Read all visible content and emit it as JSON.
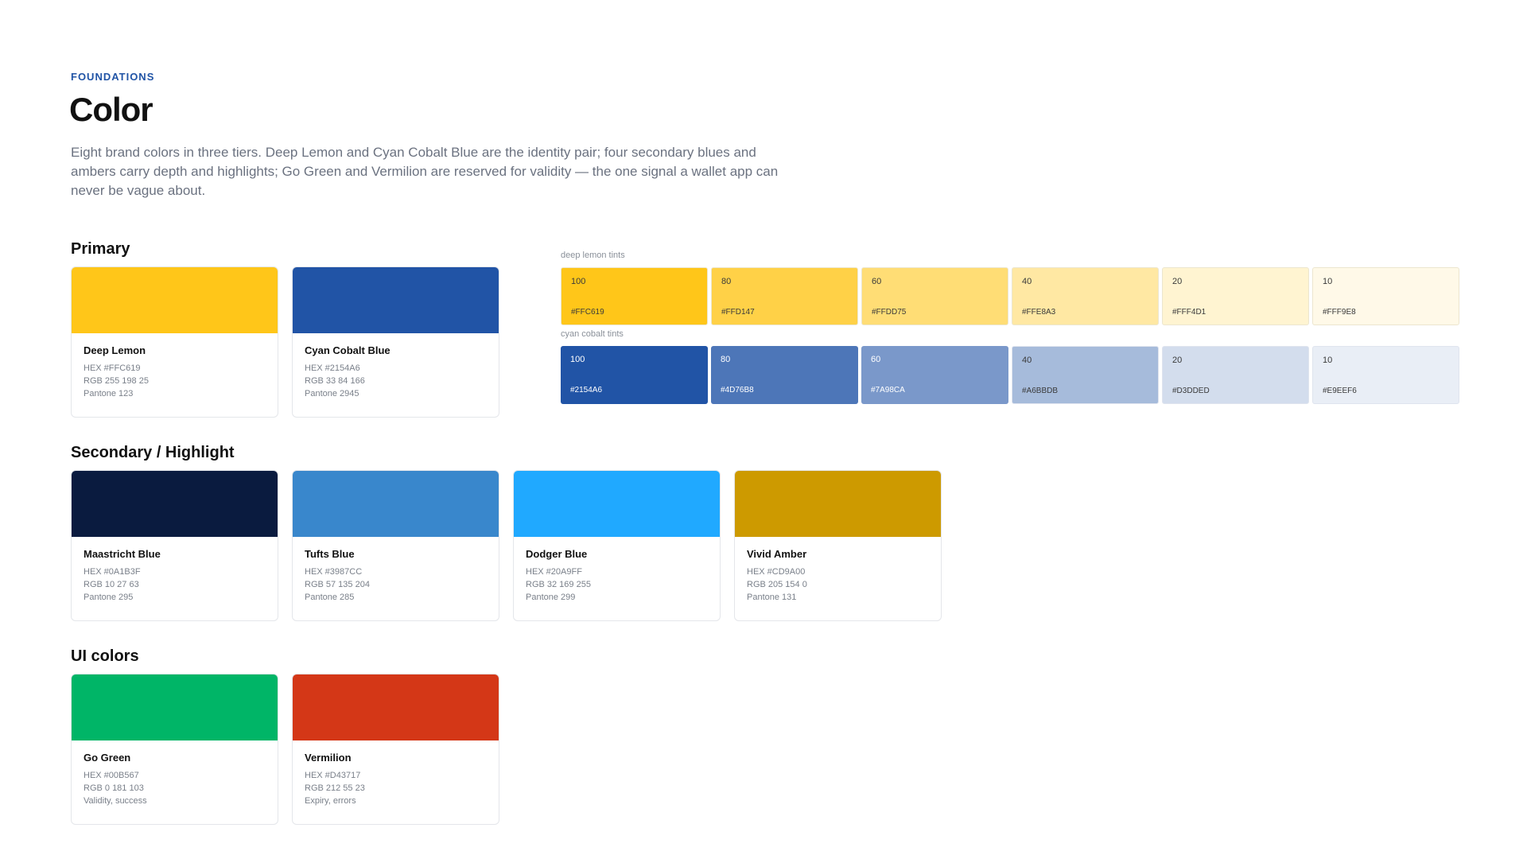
{
  "header": {
    "eyebrow": "FOUNDATIONS",
    "title": "Color",
    "intro": "Eight brand colors in three tiers. Deep Lemon and Cyan Cobalt Blue are the identity pair; four secondary blues and ambers carry depth and highlights; Go Green and Vermilion are reserved for validity — the one signal a wallet app can never be vague about."
  },
  "primary": {
    "title": "Primary",
    "cards": [
      {
        "name": "Deep Lemon",
        "hex": "HEX #FFC619",
        "rgb": "RGB 255 198 25",
        "note": "Pantone 123",
        "color": "#FFC619"
      },
      {
        "name": "Cyan Cobalt Blue",
        "hex": "HEX #2154A6",
        "rgb": "RGB 33 84 166",
        "note": "Pantone 2945",
        "color": "#2154A6"
      }
    ]
  },
  "tints": [
    {
      "label": "deep lemon  tints",
      "tiles": [
        {
          "level": "100",
          "hex": "#FFC619",
          "color": "#FFC619"
        },
        {
          "level": "80",
          "hex": "#FFD147",
          "color": "#FFD147"
        },
        {
          "level": "60",
          "hex": "#FFDD75",
          "color": "#FFDD75"
        },
        {
          "level": "40",
          "hex": "#FFE8A3",
          "color": "#FFE8A3"
        },
        {
          "level": "20",
          "hex": "#FFF4D1",
          "color": "#FFF4D1"
        },
        {
          "level": "10",
          "hex": "#FFF9E8",
          "color": "#FFF9E8"
        }
      ]
    },
    {
      "label": "cyan cobalt  tints",
      "tiles": [
        {
          "level": "100",
          "hex": "#2154A6",
          "color": "#2154A6"
        },
        {
          "level": "80",
          "hex": "#4D76B8",
          "color": "#4D76B8"
        },
        {
          "level": "60",
          "hex": "#7A98CA",
          "color": "#7A98CA"
        },
        {
          "level": "40",
          "hex": "#A6BBDB",
          "color": "#A6BBDB"
        },
        {
          "level": "20",
          "hex": "#D3DDED",
          "color": "#D3DDED"
        },
        {
          "level": "10",
          "hex": "#E9EEF6",
          "color": "#E9EEF6"
        }
      ]
    }
  ],
  "secondary": {
    "title": "Secondary / Highlight",
    "cards": [
      {
        "name": "Maastricht Blue",
        "hex": "HEX #0A1B3F",
        "rgb": "RGB 10 27 63",
        "note": "Pantone 295",
        "color": "#0A1B3F"
      },
      {
        "name": "Tufts Blue",
        "hex": "HEX #3987CC",
        "rgb": "RGB 57 135 204",
        "note": "Pantone 285",
        "color": "#3987CC"
      },
      {
        "name": "Dodger Blue",
        "hex": "HEX #20A9FF",
        "rgb": "RGB 32 169 255",
        "note": "Pantone 299",
        "color": "#20A9FF"
      },
      {
        "name": "Vivid Amber",
        "hex": "HEX #CD9A00",
        "rgb": "RGB 205 154 0",
        "note": "Pantone 131",
        "color": "#CD9A00"
      }
    ]
  },
  "ui": {
    "title": "UI colors",
    "cards": [
      {
        "name": "Go Green",
        "hex": "HEX #00B567",
        "rgb": "RGB 0 181 103",
        "note": "Validity, success",
        "color": "#00B567"
      },
      {
        "name": "Vermilion",
        "hex": "HEX #D43717",
        "rgb": "RGB 212 55 23",
        "note": "Expiry, errors",
        "color": "#D43717"
      }
    ]
  }
}
